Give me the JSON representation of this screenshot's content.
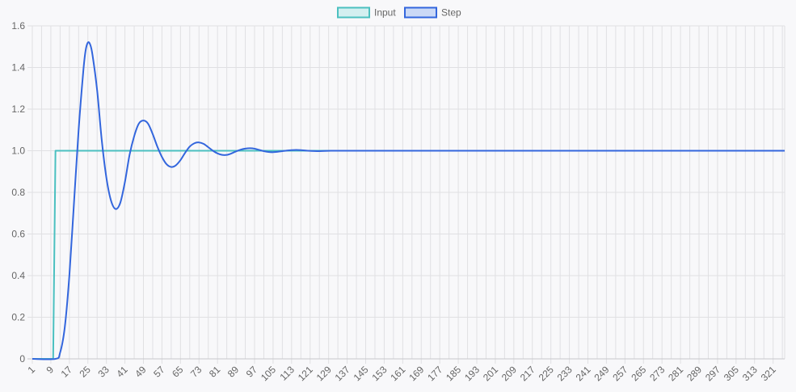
{
  "chart_data": {
    "type": "line",
    "title": "",
    "xlabel": "",
    "ylabel": "",
    "x_start": 1,
    "x_end": 326,
    "x_tick_labels": [
      "1",
      "9",
      "17",
      "25",
      "33",
      "41",
      "49",
      "57",
      "65",
      "73",
      "81",
      "89",
      "97",
      "105",
      "113",
      "121",
      "129",
      "137",
      "145",
      "153",
      "161",
      "169",
      "177",
      "185",
      "193",
      "201",
      "209",
      "217",
      "225",
      "233",
      "241",
      "249",
      "257",
      "265",
      "273",
      "281",
      "289",
      "297",
      "305",
      "313",
      "321"
    ],
    "ylim": [
      0,
      1.6
    ],
    "y_ticks": [
      "0",
      "0.2",
      "0.4",
      "0.6",
      "0.8",
      "1.0",
      "1.2",
      "1.4",
      "1.6"
    ],
    "grid": true,
    "legend_position": "top-center",
    "series": [
      {
        "name": "Input",
        "color": "#4bc0c0",
        "fill": "#d3eff0",
        "points": [
          [
            1,
            0
          ],
          [
            10,
            0
          ],
          [
            11,
            1
          ],
          [
            326,
            1
          ]
        ]
      },
      {
        "name": "Step",
        "color": "#3366dd",
        "fill": "#cbd9f6",
        "points": [
          [
            1,
            0
          ],
          [
            11,
            0
          ],
          [
            13,
            0.03
          ],
          [
            15,
            0.15
          ],
          [
            17,
            0.4
          ],
          [
            19,
            0.75
          ],
          [
            21,
            1.1
          ],
          [
            23,
            1.38
          ],
          [
            24,
            1.48
          ],
          [
            25,
            1.52
          ],
          [
            26,
            1.51
          ],
          [
            27,
            1.46
          ],
          [
            29,
            1.29
          ],
          [
            31,
            1.05
          ],
          [
            33,
            0.87
          ],
          [
            35,
            0.76
          ],
          [
            37,
            0.72
          ],
          [
            39,
            0.75
          ],
          [
            41,
            0.85
          ],
          [
            43,
            0.98
          ],
          [
            45,
            1.07
          ],
          [
            47,
            1.13
          ],
          [
            49,
            1.145
          ],
          [
            51,
            1.13
          ],
          [
            53,
            1.08
          ],
          [
            55,
            1.02
          ],
          [
            57,
            0.97
          ],
          [
            59,
            0.935
          ],
          [
            61,
            0.922
          ],
          [
            63,
            0.93
          ],
          [
            65,
            0.955
          ],
          [
            67,
            0.99
          ],
          [
            69,
            1.02
          ],
          [
            71,
            1.036
          ],
          [
            73,
            1.04
          ],
          [
            75,
            1.033
          ],
          [
            77,
            1.017
          ],
          [
            79,
            1.0
          ],
          [
            81,
            0.987
          ],
          [
            83,
            0.98
          ],
          [
            85,
            0.98
          ],
          [
            87,
            0.987
          ],
          [
            89,
            0.997
          ],
          [
            91,
            1.005
          ],
          [
            93,
            1.01
          ],
          [
            95,
            1.012
          ],
          [
            97,
            1.01
          ],
          [
            99,
            1.004
          ],
          [
            101,
            0.998
          ],
          [
            103,
            0.994
          ],
          [
            105,
            0.993
          ],
          [
            107,
            0.995
          ],
          [
            109,
            0.998
          ],
          [
            111,
            1.001
          ],
          [
            113,
            1.003
          ],
          [
            115,
            1.004
          ],
          [
            117,
            1.003
          ],
          [
            120,
            1.0
          ],
          [
            125,
            0.998
          ],
          [
            130,
            1.0
          ],
          [
            140,
            1.0
          ],
          [
            200,
            1.0
          ],
          [
            326,
            1.0
          ]
        ]
      }
    ]
  }
}
